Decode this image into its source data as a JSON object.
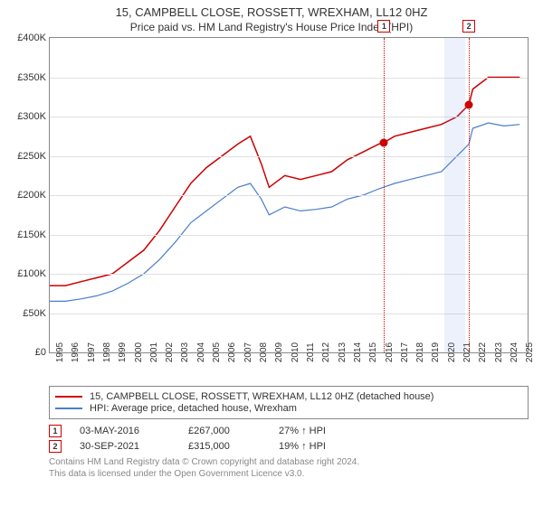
{
  "title": "15, CAMPBELL CLOSE, ROSSETT, WREXHAM, LL12 0HZ",
  "subtitle": "Price paid vs. HM Land Registry's House Price Index (HPI)",
  "chart": {
    "type": "line",
    "xlim": [
      1995,
      2025.5
    ],
    "ylim": [
      0,
      400000
    ],
    "ytick_step": 50000,
    "yticks": [
      "£0",
      "£50K",
      "£100K",
      "£150K",
      "£200K",
      "£250K",
      "£300K",
      "£350K",
      "£400K"
    ],
    "xticks": [
      1995,
      1996,
      1997,
      1998,
      1999,
      2000,
      2001,
      2002,
      2003,
      2004,
      2005,
      2006,
      2007,
      2008,
      2009,
      2010,
      2011,
      2012,
      2013,
      2014,
      2015,
      2016,
      2017,
      2018,
      2019,
      2020,
      2021,
      2022,
      2023,
      2024,
      2025
    ],
    "grid_color": "#e0e0e0",
    "background_color": "#ffffff",
    "border_color": "#888888",
    "shaded": {
      "from": 2020.2,
      "to": 2021.5,
      "color": "rgba(100,140,220,0.12)"
    },
    "series": [
      {
        "name": "price_paid",
        "label": "15, CAMPBELL CLOSE, ROSSETT, WREXHAM, LL12 0HZ (detached house)",
        "color": "#cc0000",
        "line_width": 1.5,
        "data": [
          [
            1995,
            85000
          ],
          [
            1996,
            85000
          ],
          [
            1997,
            90000
          ],
          [
            1998,
            95000
          ],
          [
            1999,
            100000
          ],
          [
            2000,
            115000
          ],
          [
            2001,
            130000
          ],
          [
            2002,
            155000
          ],
          [
            2003,
            185000
          ],
          [
            2004,
            215000
          ],
          [
            2005,
            235000
          ],
          [
            2006,
            250000
          ],
          [
            2007,
            265000
          ],
          [
            2007.8,
            275000
          ],
          [
            2008.5,
            240000
          ],
          [
            2009,
            210000
          ],
          [
            2010,
            225000
          ],
          [
            2011,
            220000
          ],
          [
            2012,
            225000
          ],
          [
            2013,
            230000
          ],
          [
            2014,
            245000
          ],
          [
            2015,
            255000
          ],
          [
            2016,
            265000
          ],
          [
            2016.34,
            267000
          ],
          [
            2017,
            275000
          ],
          [
            2018,
            280000
          ],
          [
            2019,
            285000
          ],
          [
            2020,
            290000
          ],
          [
            2021,
            300000
          ],
          [
            2021.75,
            315000
          ],
          [
            2022,
            335000
          ],
          [
            2023,
            350000
          ],
          [
            2024,
            350000
          ],
          [
            2025,
            350000
          ]
        ]
      },
      {
        "name": "hpi",
        "label": "HPI: Average price, detached house, Wrexham",
        "color": "#4a7ecb",
        "line_width": 1.2,
        "data": [
          [
            1995,
            65000
          ],
          [
            1996,
            65000
          ],
          [
            1997,
            68000
          ],
          [
            1998,
            72000
          ],
          [
            1999,
            78000
          ],
          [
            2000,
            88000
          ],
          [
            2001,
            100000
          ],
          [
            2002,
            118000
          ],
          [
            2003,
            140000
          ],
          [
            2004,
            165000
          ],
          [
            2005,
            180000
          ],
          [
            2006,
            195000
          ],
          [
            2007,
            210000
          ],
          [
            2007.8,
            215000
          ],
          [
            2008.5,
            195000
          ],
          [
            2009,
            175000
          ],
          [
            2010,
            185000
          ],
          [
            2011,
            180000
          ],
          [
            2012,
            182000
          ],
          [
            2013,
            185000
          ],
          [
            2014,
            195000
          ],
          [
            2015,
            200000
          ],
          [
            2016,
            208000
          ],
          [
            2017,
            215000
          ],
          [
            2018,
            220000
          ],
          [
            2019,
            225000
          ],
          [
            2020,
            230000
          ],
          [
            2021,
            250000
          ],
          [
            2021.75,
            265000
          ],
          [
            2022,
            285000
          ],
          [
            2023,
            292000
          ],
          [
            2024,
            288000
          ],
          [
            2025,
            290000
          ]
        ]
      }
    ],
    "markers": [
      {
        "n": "1",
        "x": 2016.34,
        "y": 267000
      },
      {
        "n": "2",
        "x": 2021.75,
        "y": 315000
      }
    ],
    "tick_fontsize": 11,
    "xtick_fontsize": 10
  },
  "events": [
    {
      "n": "1",
      "date": "03-MAY-2016",
      "price": "£267,000",
      "delta": "27% ↑ HPI"
    },
    {
      "n": "2",
      "date": "30-SEP-2021",
      "price": "£315,000",
      "delta": "19% ↑ HPI"
    }
  ],
  "footer": {
    "l1": "Contains HM Land Registry data © Crown copyright and database right 2024.",
    "l2": "This data is licensed under the Open Government Licence v3.0."
  }
}
